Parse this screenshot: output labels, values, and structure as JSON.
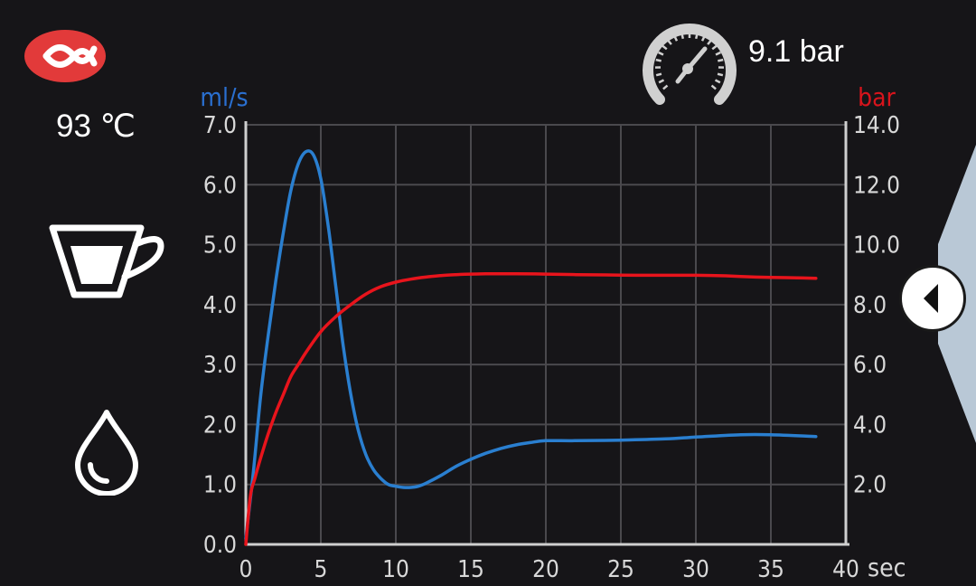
{
  "status": {
    "temperature": "93 ℃",
    "pressure": "9.1 bar"
  },
  "icons": {
    "brand": "brand-logo-icon",
    "pressure_gauge": "pressure-gauge-icon",
    "cup": "espresso-cup-icon",
    "drop": "water-drop-icon",
    "back": "chevron-left-icon"
  },
  "colors": {
    "background": "#161518",
    "flow": "#2a7fd0",
    "pressure": "#e8141c",
    "brand": "#e23a3a",
    "grid": "#4a494d"
  },
  "chart_data": {
    "type": "line",
    "xlabel": "sec",
    "ylabel": "ml/s",
    "y2label": "bar",
    "xlim": [
      0,
      40
    ],
    "ylim": [
      0,
      7
    ],
    "y2lim": [
      0,
      14
    ],
    "xticks": [
      "0",
      "5",
      "10",
      "15",
      "20",
      "25",
      "30",
      "35",
      "40"
    ],
    "yticks": [
      "0.0",
      "1.0",
      "2.0",
      "3.0",
      "4.0",
      "5.0",
      "6.0",
      "7.0"
    ],
    "y2ticks": [
      "2.0",
      "4.0",
      "6.0",
      "8.0",
      "10.0",
      "12.0",
      "14.0"
    ],
    "grid": true,
    "series": [
      {
        "name": "ml/s",
        "axis": "left",
        "color": "#2a7fd0",
        "x": [
          0,
          0.5,
          1,
          1.5,
          2,
          2.5,
          3,
          3.5,
          4,
          4.5,
          5,
          5.5,
          6,
          6.5,
          7,
          7.5,
          8,
          8.5,
          9,
          9.5,
          10,
          10.5,
          11,
          11.5,
          12,
          13,
          14,
          15,
          16,
          17,
          18,
          19,
          20,
          22,
          25,
          28,
          30,
          33,
          35,
          38
        ],
        "y": [
          0.1,
          1.2,
          2.5,
          3.5,
          4.4,
          5.2,
          5.9,
          6.35,
          6.55,
          6.5,
          6.1,
          5.3,
          4.3,
          3.3,
          2.5,
          1.9,
          1.5,
          1.25,
          1.1,
          1.0,
          0.97,
          0.95,
          0.95,
          0.97,
          1.02,
          1.15,
          1.3,
          1.42,
          1.52,
          1.6,
          1.66,
          1.7,
          1.73,
          1.73,
          1.74,
          1.76,
          1.79,
          1.83,
          1.83,
          1.8
        ]
      },
      {
        "name": "bar",
        "axis": "right",
        "color": "#e8141c",
        "x": [
          0,
          0.3,
          0.6,
          1,
          1.5,
          2,
          2.5,
          3,
          3.5,
          4,
          5,
          6,
          7,
          8,
          9,
          10,
          11,
          12,
          13,
          14,
          15,
          16,
          17,
          18,
          20,
          22,
          24,
          26,
          28,
          30,
          32,
          34,
          36,
          38
        ],
        "y": [
          0.0,
          1.6,
          2.2,
          2.9,
          3.7,
          4.4,
          5.0,
          5.6,
          6.0,
          6.4,
          7.1,
          7.6,
          8.0,
          8.35,
          8.6,
          8.75,
          8.85,
          8.92,
          8.97,
          9.0,
          9.02,
          9.03,
          9.03,
          9.03,
          9.02,
          9.0,
          8.99,
          8.98,
          8.98,
          8.98,
          8.96,
          8.92,
          8.9,
          8.88
        ]
      }
    ]
  }
}
